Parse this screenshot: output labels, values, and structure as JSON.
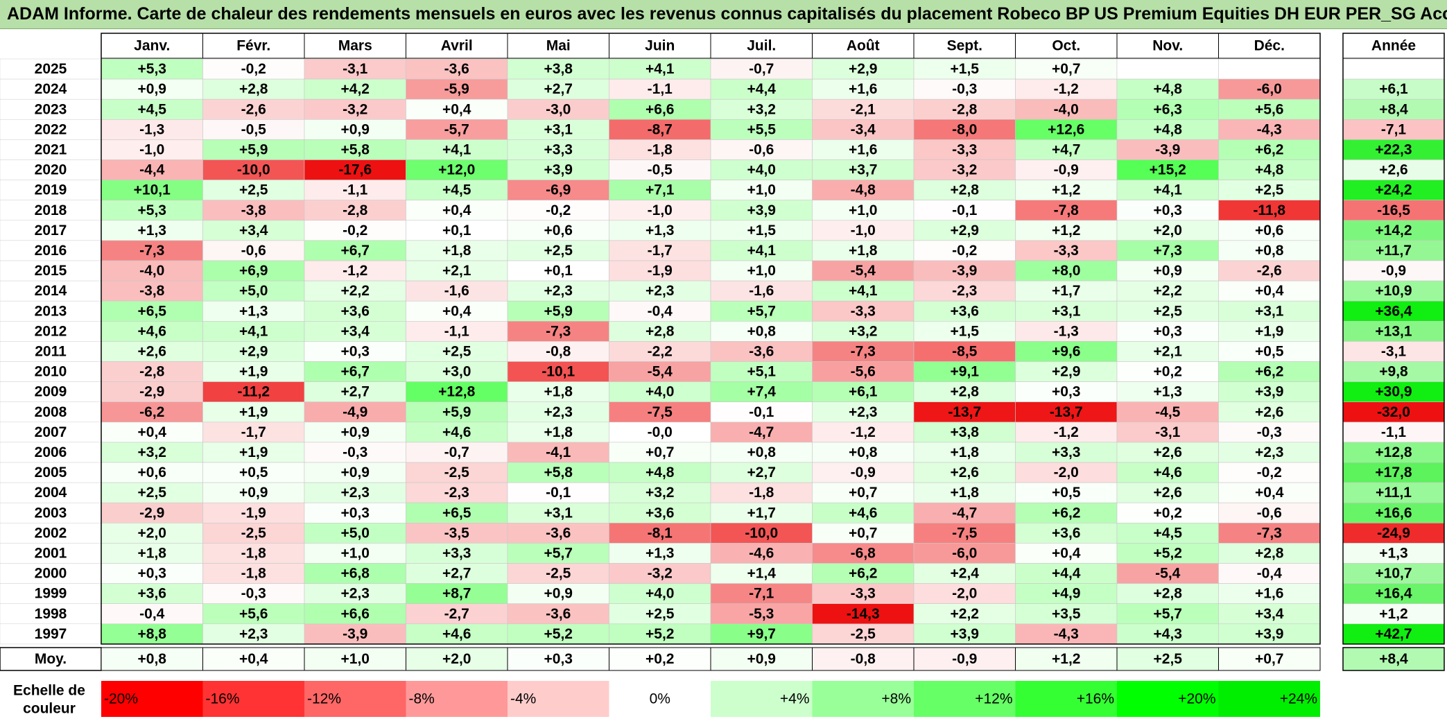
{
  "title": "ADAM Informe. Carte de chaleur des rendements mensuels en euros avec les revenus connus capitalisés du placement Robeco BP US Premium Equities DH EUR PER_SG Acc",
  "chart_data": {
    "type": "heatmap",
    "months": [
      "Janv.",
      "Févr.",
      "Mars",
      "Avril",
      "Mai",
      "Juin",
      "Juil.",
      "Août",
      "Sept.",
      "Oct.",
      "Nov.",
      "Déc."
    ],
    "annual_header": "Année",
    "average_label": "Moy.",
    "rows": [
      {
        "year": "2025",
        "values": [
          "+5,3",
          "-0,2",
          "-3,1",
          "-3,6",
          "+3,8",
          "+4,1",
          "-0,7",
          "+2,9",
          "+1,5",
          "+0,7",
          "",
          ""
        ],
        "annual": ""
      },
      {
        "year": "2024",
        "values": [
          "+0,9",
          "+2,8",
          "+4,2",
          "-5,9",
          "+2,7",
          "-1,1",
          "+4,4",
          "+1,6",
          "-0,3",
          "-1,2",
          "+4,8",
          "-6,0"
        ],
        "annual": "+6,1"
      },
      {
        "year": "2023",
        "values": [
          "+4,5",
          "-2,6",
          "-3,2",
          "+0,4",
          "-3,0",
          "+6,6",
          "+3,2",
          "-2,1",
          "-2,8",
          "-4,0",
          "+6,3",
          "+5,6"
        ],
        "annual": "+8,4"
      },
      {
        "year": "2022",
        "values": [
          "-1,3",
          "-0,5",
          "+0,9",
          "-5,7",
          "+3,1",
          "-8,7",
          "+5,5",
          "-3,4",
          "-8,0",
          "+12,6",
          "+4,8",
          "-4,3"
        ],
        "annual": "-7,1"
      },
      {
        "year": "2021",
        "values": [
          "-1,0",
          "+5,9",
          "+5,8",
          "+4,1",
          "+3,3",
          "-1,8",
          "-0,6",
          "+1,6",
          "-3,3",
          "+4,7",
          "-3,9",
          "+6,2"
        ],
        "annual": "+22,3"
      },
      {
        "year": "2020",
        "values": [
          "-4,4",
          "-10,0",
          "-17,6",
          "+12,0",
          "+3,9",
          "-0,5",
          "+4,0",
          "+3,7",
          "-3,2",
          "-0,9",
          "+15,2",
          "+4,8"
        ],
        "annual": "+2,6"
      },
      {
        "year": "2019",
        "values": [
          "+10,1",
          "+2,5",
          "-1,1",
          "+4,5",
          "-6,9",
          "+7,1",
          "+1,0",
          "-4,8",
          "+2,8",
          "+1,2",
          "+4,1",
          "+2,5"
        ],
        "annual": "+24,2"
      },
      {
        "year": "2018",
        "values": [
          "+5,3",
          "-3,8",
          "-2,8",
          "+0,4",
          "-0,2",
          "-1,0",
          "+3,9",
          "+1,0",
          "-0,1",
          "-7,8",
          "+0,3",
          "-11,8"
        ],
        "annual": "-16,5"
      },
      {
        "year": "2017",
        "values": [
          "+1,3",
          "+3,4",
          "-0,2",
          "+0,1",
          "+0,6",
          "+1,3",
          "+1,5",
          "-1,0",
          "+2,9",
          "+1,2",
          "+2,0",
          "+0,6"
        ],
        "annual": "+14,2"
      },
      {
        "year": "2016",
        "values": [
          "-7,3",
          "-0,6",
          "+6,7",
          "+1,8",
          "+2,5",
          "-1,7",
          "+4,1",
          "+1,8",
          "-0,2",
          "-3,3",
          "+7,3",
          "+0,8"
        ],
        "annual": "+11,7"
      },
      {
        "year": "2015",
        "values": [
          "-4,0",
          "+6,9",
          "-1,2",
          "+2,1",
          "+0,1",
          "-1,9",
          "+1,0",
          "-5,4",
          "-3,9",
          "+8,0",
          "+0,9",
          "-2,6"
        ],
        "annual": "-0,9"
      },
      {
        "year": "2014",
        "values": [
          "-3,8",
          "+5,0",
          "+2,2",
          "-1,6",
          "+2,3",
          "+2,3",
          "-1,6",
          "+4,1",
          "-2,3",
          "+1,7",
          "+2,2",
          "+0,4"
        ],
        "annual": "+10,9"
      },
      {
        "year": "2013",
        "values": [
          "+6,5",
          "+1,3",
          "+3,6",
          "+0,4",
          "+5,9",
          "-0,4",
          "+5,7",
          "-3,3",
          "+3,6",
          "+3,1",
          "+2,5",
          "+3,1"
        ],
        "annual": "+36,4"
      },
      {
        "year": "2012",
        "values": [
          "+4,6",
          "+4,1",
          "+3,4",
          "-1,1",
          "-7,3",
          "+2,8",
          "+0,8",
          "+3,2",
          "+1,5",
          "-1,3",
          "+0,3",
          "+1,9"
        ],
        "annual": "+13,1"
      },
      {
        "year": "2011",
        "values": [
          "+2,6",
          "+2,9",
          "+0,3",
          "+2,5",
          "-0,8",
          "-2,2",
          "-3,6",
          "-7,3",
          "-8,5",
          "+9,6",
          "+2,1",
          "+0,5"
        ],
        "annual": "-3,1"
      },
      {
        "year": "2010",
        "values": [
          "-2,8",
          "+1,9",
          "+6,7",
          "+3,0",
          "-10,1",
          "-5,4",
          "+5,1",
          "-5,6",
          "+9,1",
          "+2,9",
          "+0,2",
          "+6,2"
        ],
        "annual": "+9,8"
      },
      {
        "year": "2009",
        "values": [
          "-2,9",
          "-11,2",
          "+2,7",
          "+12,8",
          "+1,8",
          "+4,0",
          "+7,4",
          "+6,1",
          "+2,8",
          "+0,3",
          "+1,3",
          "+3,9"
        ],
        "annual": "+30,9"
      },
      {
        "year": "2008",
        "values": [
          "-6,2",
          "+1,9",
          "-4,9",
          "+5,9",
          "+2,3",
          "-7,5",
          "-0,1",
          "+2,3",
          "-13,7",
          "-13,7",
          "-4,5",
          "+2,6"
        ],
        "annual": "-32,0"
      },
      {
        "year": "2007",
        "values": [
          "+0,4",
          "-1,7",
          "+0,9",
          "+4,6",
          "+1,8",
          "-0,0",
          "-4,7",
          "-1,2",
          "+3,8",
          "-1,2",
          "-3,1",
          "-0,3"
        ],
        "annual": "-1,1"
      },
      {
        "year": "2006",
        "values": [
          "+3,2",
          "+1,9",
          "-0,3",
          "-0,7",
          "-4,1",
          "+0,7",
          "+0,8",
          "+0,8",
          "+1,8",
          "+3,3",
          "+2,6",
          "+2,3"
        ],
        "annual": "+12,8"
      },
      {
        "year": "2005",
        "values": [
          "+0,6",
          "+0,5",
          "+0,9",
          "-2,5",
          "+5,8",
          "+4,8",
          "+2,7",
          "-0,9",
          "+2,6",
          "-2,0",
          "+4,6",
          "-0,2"
        ],
        "annual": "+17,8"
      },
      {
        "year": "2004",
        "values": [
          "+2,5",
          "+0,9",
          "+2,3",
          "-2,3",
          "-0,1",
          "+3,2",
          "-1,8",
          "+0,7",
          "+1,8",
          "+0,5",
          "+2,6",
          "+0,4"
        ],
        "annual": "+11,1"
      },
      {
        "year": "2003",
        "values": [
          "-2,9",
          "-1,9",
          "+0,3",
          "+6,5",
          "+3,1",
          "+3,6",
          "+1,7",
          "+4,6",
          "-4,7",
          "+6,2",
          "+0,2",
          "-0,6"
        ],
        "annual": "+16,6"
      },
      {
        "year": "2002",
        "values": [
          "+2,0",
          "-2,5",
          "+5,0",
          "-3,5",
          "-3,6",
          "-8,1",
          "-10,0",
          "+0,7",
          "-7,5",
          "+3,6",
          "+4,5",
          "-7,3"
        ],
        "annual": "-24,9"
      },
      {
        "year": "2001",
        "values": [
          "+1,8",
          "-1,8",
          "+1,0",
          "+3,3",
          "+5,7",
          "+1,3",
          "-4,6",
          "-6,8",
          "-6,0",
          "+0,4",
          "+5,2",
          "+2,8"
        ],
        "annual": "+1,3"
      },
      {
        "year": "2000",
        "values": [
          "+0,3",
          "-1,8",
          "+6,8",
          "+2,7",
          "-2,5",
          "-3,2",
          "+1,4",
          "+6,2",
          "+2,4",
          "+4,4",
          "-5,4",
          "-0,4"
        ],
        "annual": "+10,7"
      },
      {
        "year": "1999",
        "values": [
          "+3,6",
          "-0,3",
          "+2,3",
          "+8,7",
          "+0,9",
          "+4,0",
          "-7,1",
          "-3,3",
          "-2,0",
          "+4,9",
          "+2,8",
          "+1,6"
        ],
        "annual": "+16,4"
      },
      {
        "year": "1998",
        "values": [
          "-0,4",
          "+5,6",
          "+6,6",
          "-2,7",
          "-3,6",
          "+2,5",
          "-5,3",
          "-14,3",
          "+2,2",
          "+3,5",
          "+5,7",
          "+3,4"
        ],
        "annual": "+1,2"
      },
      {
        "year": "1997",
        "values": [
          "+8,8",
          "+2,3",
          "-3,9",
          "+4,6",
          "+5,2",
          "+5,2",
          "+9,7",
          "-2,5",
          "+3,9",
          "-4,3",
          "+4,3",
          "+3,9"
        ],
        "annual": "+42,7"
      }
    ],
    "average": {
      "values": [
        "+0,8",
        "+0,4",
        "+1,0",
        "+2,0",
        "+0,3",
        "+0,2",
        "+0,9",
        "-0,8",
        "-0,9",
        "+1,2",
        "+2,5",
        "+0,7"
      ],
      "annual": "+8,4"
    },
    "color_scale": {
      "label_line1": "Echelle de",
      "label_line2": "couleur",
      "steps": [
        {
          "label": "-20%",
          "value": -20,
          "color": "#ff0000"
        },
        {
          "label": "-16%",
          "value": -16,
          "color": "#ff3333"
        },
        {
          "label": "-12%",
          "value": -12,
          "color": "#ff6666"
        },
        {
          "label": "-8%",
          "value": -8,
          "color": "#ff9999"
        },
        {
          "label": "-4%",
          "value": -4,
          "color": "#ffcccc"
        },
        {
          "label": "0%",
          "value": 0,
          "color": "#ffffff"
        },
        {
          "label": "+4%",
          "value": 4,
          "color": "#ccffcc"
        },
        {
          "label": "+8%",
          "value": 8,
          "color": "#99ff99"
        },
        {
          "label": "+12%",
          "value": 12,
          "color": "#66ff66"
        },
        {
          "label": "+16%",
          "value": 16,
          "color": "#33ff33"
        },
        {
          "label": "+20%",
          "value": 20,
          "color": "#00ff00"
        },
        {
          "label": "+24%",
          "value": 24,
          "color": "#00ee00"
        }
      ]
    }
  }
}
